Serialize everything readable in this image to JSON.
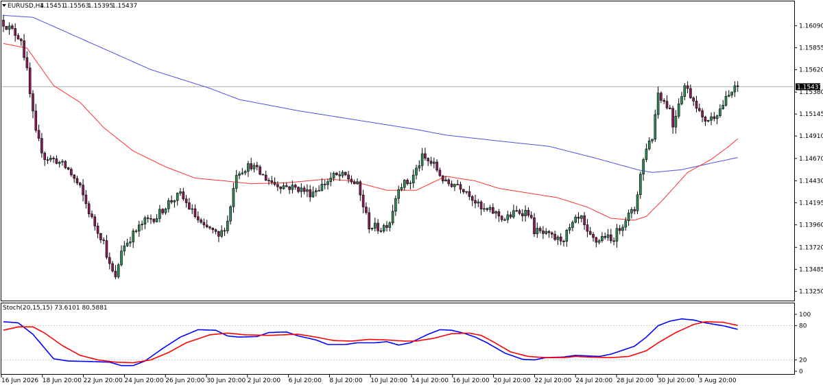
{
  "header": {
    "symbol": "EURUSD,H4",
    "open": "1.15451",
    "high": "1.15563",
    "low": "1.15395",
    "close": "1.15437"
  },
  "current_price": "1.15437",
  "stoch_label": "Stoch(20,15,15) 73.6101 80.5881",
  "colors": {
    "bull": "#2e8b57",
    "bear": "#8b1a5a",
    "ma_fast": "#ff3030",
    "ma_slow": "#4a50e0",
    "stoch_main": "#0000ff",
    "stoch_signal": "#ff0000",
    "grid": "#c8c8c8"
  },
  "chart_data": [
    {
      "type": "candlestick",
      "symbol": "EURUSD",
      "timeframe": "H4",
      "ylim": [
        1.1315,
        1.1635
      ],
      "y_ticks": [
        "1.16090",
        "1.15855",
        "1.15620",
        "1.15380",
        "1.15145",
        "1.14910",
        "1.14670",
        "1.14430",
        "1.14195",
        "1.13960",
        "1.13720",
        "1.13485",
        "1.13250"
      ],
      "x_ticks": [
        "16 Jun 2026",
        "18 Jun 20:00",
        "22 Jun 20:00",
        "24 Jun 20:00",
        "26 Jun 20:00",
        "30 Jun 20:00",
        "2 Jul 20:00",
        "6 Jul 20:00",
        "8 Jul 20:00",
        "10 Jul 20:00",
        "14 Jul 20:00",
        "16 Jul 20:00",
        "20 Jul 20:00",
        "22 Jul 20:00",
        "24 Jul 20:00",
        "28 Jul 20:00",
        "30 Jul 20:00",
        "3 Aug 20:00"
      ],
      "anchors": {
        "close": [
          [
            0,
            1.1612
          ],
          [
            6,
            1.1595
          ],
          [
            8,
            1.156
          ],
          [
            9,
            1.1535
          ],
          [
            11,
            1.1493
          ],
          [
            14,
            1.1468
          ],
          [
            18,
            1.1465
          ],
          [
            22,
            1.1455
          ],
          [
            26,
            1.1435
          ],
          [
            30,
            1.1402
          ],
          [
            34,
            1.1378
          ],
          [
            36,
            1.1352
          ],
          [
            38,
            1.1338
          ],
          [
            40,
            1.137
          ],
          [
            44,
            1.1386
          ],
          [
            48,
            1.14
          ],
          [
            52,
            1.1405
          ],
          [
            56,
            1.142
          ],
          [
            60,
            1.1428
          ],
          [
            64,
            1.141
          ],
          [
            68,
            1.1392
          ],
          [
            70,
            1.1392
          ],
          [
            73,
            1.1382
          ],
          [
            76,
            1.14
          ],
          [
            79,
            1.1452
          ],
          [
            84,
            1.146
          ],
          [
            88,
            1.1448
          ],
          [
            92,
            1.144
          ],
          [
            96,
            1.1437
          ],
          [
            100,
            1.1435
          ],
          [
            104,
            1.143
          ],
          [
            108,
            1.1438
          ],
          [
            112,
            1.1448
          ],
          [
            116,
            1.1448
          ],
          [
            120,
            1.1438
          ],
          [
            124,
            1.1395
          ],
          [
            128,
            1.1392
          ],
          [
            131,
            1.14
          ],
          [
            134,
            1.1438
          ],
          [
            138,
            1.1442
          ],
          [
            142,
            1.1468
          ],
          [
            146,
            1.146
          ],
          [
            150,
            1.144
          ],
          [
            154,
            1.144
          ],
          [
            158,
            1.143
          ],
          [
            162,
            1.1412
          ],
          [
            166,
            1.141
          ],
          [
            170,
            1.1402
          ],
          [
            174,
            1.141
          ],
          [
            178,
            1.141
          ],
          [
            180,
            1.139
          ],
          [
            184,
            1.1385
          ],
          [
            188,
            1.138
          ],
          [
            190,
            1.1382
          ],
          [
            194,
            1.14
          ],
          [
            196,
            1.1402
          ],
          [
            198,
            1.1385
          ],
          [
            201,
            1.1378
          ],
          [
            204,
            1.1385
          ],
          [
            206,
            1.1378
          ],
          [
            208,
            1.1388
          ],
          [
            211,
            1.1403
          ],
          [
            214,
            1.1412
          ],
          [
            216,
            1.145
          ],
          [
            218,
            1.148
          ],
          [
            220,
            1.149
          ],
          [
            222,
            1.1538
          ],
          [
            224,
            1.1528
          ],
          [
            226,
            1.152
          ],
          [
            227,
            1.1502
          ],
          [
            229,
            1.1528
          ],
          [
            231,
            1.1545
          ],
          [
            233,
            1.1535
          ],
          [
            235,
            1.1525
          ],
          [
            237,
            1.1508
          ],
          [
            240,
            1.151
          ],
          [
            243,
            1.152
          ],
          [
            245,
            1.153
          ],
          [
            247,
            1.1538
          ],
          [
            249,
            1.1544
          ]
        ],
        "ma_fast": [
          [
            0,
            1.159
          ],
          [
            8,
            1.1585
          ],
          [
            17,
            1.1545
          ],
          [
            26,
            1.1527
          ],
          [
            34,
            1.15
          ],
          [
            44,
            1.1475
          ],
          [
            55,
            1.1458
          ],
          [
            65,
            1.1446
          ],
          [
            75,
            1.1443
          ],
          [
            84,
            1.144
          ],
          [
            96,
            1.1441
          ],
          [
            110,
            1.1445
          ],
          [
            118,
            1.1443
          ],
          [
            130,
            1.1433
          ],
          [
            140,
            1.1433
          ],
          [
            150,
            1.1448
          ],
          [
            160,
            1.1443
          ],
          [
            168,
            1.1435
          ],
          [
            178,
            1.143
          ],
          [
            188,
            1.1425
          ],
          [
            198,
            1.1415
          ],
          [
            206,
            1.1403
          ],
          [
            214,
            1.1401
          ],
          [
            218,
            1.1405
          ],
          [
            224,
            1.1424
          ],
          [
            232,
            1.1452
          ],
          [
            240,
            1.1466
          ],
          [
            246,
            1.148
          ],
          [
            249,
            1.1488
          ]
        ],
        "ma_slow": [
          [
            0,
            1.162
          ],
          [
            10,
            1.1618
          ],
          [
            30,
            1.159
          ],
          [
            50,
            1.1562
          ],
          [
            70,
            1.1542
          ],
          [
            80,
            1.153
          ],
          [
            100,
            1.1518
          ],
          [
            120,
            1.1508
          ],
          [
            140,
            1.1498
          ],
          [
            150,
            1.1492
          ],
          [
            170,
            1.1485
          ],
          [
            185,
            1.148
          ],
          [
            200,
            1.1468
          ],
          [
            215,
            1.1455
          ],
          [
            220,
            1.1452
          ],
          [
            230,
            1.1455
          ],
          [
            240,
            1.1462
          ],
          [
            249,
            1.1468
          ]
        ]
      }
    },
    {
      "type": "line",
      "name": "Stoch(20,15,15)",
      "ylim": [
        0,
        100
      ],
      "y_ticks": [
        "100",
        "80",
        "20",
        "0"
      ],
      "levels": [
        80,
        20
      ],
      "series": [
        {
          "name": "",
          "values": [
            [
              0,
              87
            ],
            [
              5,
              85
            ],
            [
              10,
              65
            ],
            [
              17,
              22
            ],
            [
              22,
              18
            ],
            [
              30,
              17
            ],
            [
              36,
              16
            ],
            [
              40,
              10
            ],
            [
              44,
              10
            ],
            [
              48,
              18
            ],
            [
              54,
              40
            ],
            [
              60,
              60
            ],
            [
              66,
              73
            ],
            [
              72,
              72
            ],
            [
              76,
              62
            ],
            [
              80,
              60
            ],
            [
              86,
              61
            ],
            [
              90,
              68
            ],
            [
              96,
              69
            ],
            [
              100,
              62
            ],
            [
              106,
              55
            ],
            [
              110,
              47
            ],
            [
              116,
              47
            ],
            [
              120,
              50
            ],
            [
              126,
              50
            ],
            [
              130,
              52
            ],
            [
              134,
              46
            ],
            [
              138,
              50
            ],
            [
              144,
              65
            ],
            [
              148,
              73
            ],
            [
              152,
              72
            ],
            [
              156,
              67
            ],
            [
              160,
              60
            ],
            [
              164,
              50
            ],
            [
              170,
              32
            ],
            [
              176,
              21
            ],
            [
              180,
              20
            ],
            [
              184,
              24
            ],
            [
              190,
              25
            ],
            [
              194,
              28
            ],
            [
              198,
              27
            ],
            [
              202,
              26
            ],
            [
              206,
              30
            ],
            [
              210,
              37
            ],
            [
              214,
              44
            ],
            [
              218,
              60
            ],
            [
              222,
              80
            ],
            [
              226,
              88
            ],
            [
              230,
              92
            ],
            [
              234,
              90
            ],
            [
              238,
              85
            ],
            [
              244,
              80
            ],
            [
              249,
              73.6
            ]
          ]
        },
        {
          "name": "",
          "values": [
            [
              0,
              72
            ],
            [
              5,
              78
            ],
            [
              10,
              78
            ],
            [
              14,
              67
            ],
            [
              20,
              45
            ],
            [
              26,
              28
            ],
            [
              32,
              20
            ],
            [
              38,
              16
            ],
            [
              44,
              15
            ],
            [
              50,
              20
            ],
            [
              56,
              33
            ],
            [
              62,
              50
            ],
            [
              70,
              64
            ],
            [
              76,
              67
            ],
            [
              82,
              64
            ],
            [
              90,
              63
            ],
            [
              100,
              65
            ],
            [
              106,
              60
            ],
            [
              112,
              54
            ],
            [
              118,
              53
            ],
            [
              124,
              56
            ],
            [
              130,
              55
            ],
            [
              136,
              53
            ],
            [
              140,
              53
            ],
            [
              146,
              58
            ],
            [
              152,
              66
            ],
            [
              158,
              67
            ],
            [
              162,
              63
            ],
            [
              166,
              52
            ],
            [
              172,
              34
            ],
            [
              178,
              26
            ],
            [
              184,
              24
            ],
            [
              190,
              24
            ],
            [
              194,
              26
            ],
            [
              198,
              25
            ],
            [
              206,
              24
            ],
            [
              212,
              26
            ],
            [
              218,
              36
            ],
            [
              222,
              50
            ],
            [
              228,
              68
            ],
            [
              234,
              82
            ],
            [
              238,
              87
            ],
            [
              244,
              86
            ],
            [
              249,
              80.6
            ]
          ]
        }
      ]
    }
  ]
}
